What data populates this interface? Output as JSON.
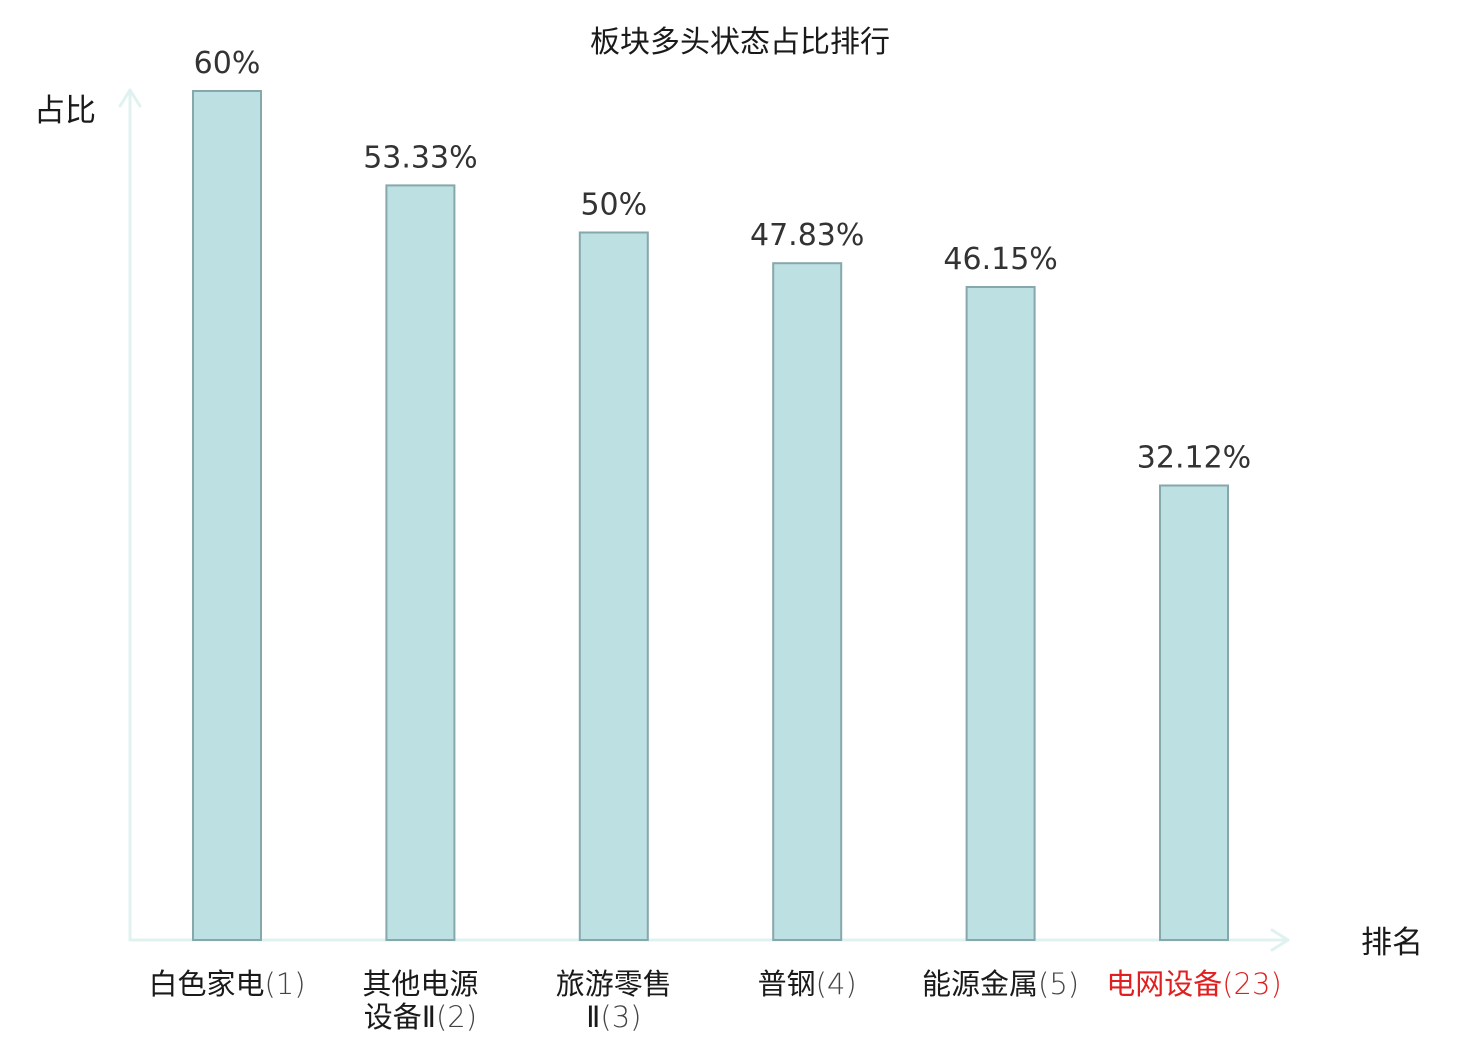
{
  "chart_data": {
    "type": "bar",
    "title": "板块多头状态占比排行",
    "xlabel": "排名",
    "ylabel": "占比",
    "ylim": [
      0,
      60
    ],
    "grid": false,
    "legend": "none",
    "categories": [
      {
        "name_lines": [
          "白色家电"
        ],
        "rank": "(1)",
        "highlight": false
      },
      {
        "name_lines": [
          "其他电源",
          "设备Ⅱ"
        ],
        "rank": "(2)",
        "highlight": false
      },
      {
        "name_lines": [
          "旅游零售",
          "Ⅱ"
        ],
        "rank": "(3)",
        "highlight": false
      },
      {
        "name_lines": [
          "普钢"
        ],
        "rank": "(4)",
        "highlight": false
      },
      {
        "name_lines": [
          "能源金属"
        ],
        "rank": "(5)",
        "highlight": false
      },
      {
        "name_lines": [
          "电网设备"
        ],
        "rank": "(23)",
        "highlight": true
      }
    ],
    "values": [
      60,
      53.33,
      50,
      47.83,
      46.15,
      32.12
    ],
    "value_labels": [
      "60%",
      "53.33%",
      "50%",
      "47.83%",
      "46.15%",
      "32.12%"
    ]
  },
  "colors": {
    "bar_fill": "#bde0e3",
    "bar_stroke": "#86a7ab",
    "axis": "#e0f2f0",
    "text": "#1a1a1a",
    "value_text": "#333333",
    "highlight": "#e02020"
  }
}
